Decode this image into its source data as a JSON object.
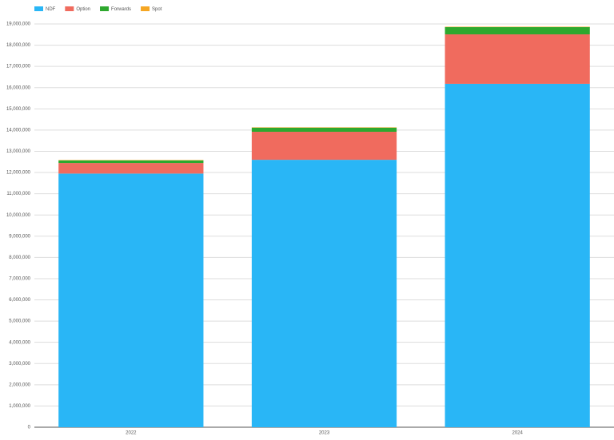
{
  "chart_data": {
    "type": "stacked_bar",
    "categories": [
      "2022",
      "2023",
      "2024"
    ],
    "series": [
      {
        "name": "NDF",
        "color": "#29b6f6",
        "values": [
          11950000,
          12600000,
          16180000
        ]
      },
      {
        "name": "Option",
        "color": "#f06b5e",
        "values": [
          500000,
          1320000,
          2330000
        ]
      },
      {
        "name": "Forwards",
        "color": "#2ea82e",
        "values": [
          120000,
          190000,
          340000
        ]
      },
      {
        "name": "Spot",
        "color": "#f5a623",
        "values": [
          20000,
          20000,
          20000
        ]
      }
    ],
    "ylim": [
      0,
      19000000
    ],
    "yticks": [
      0,
      {
        "value": 1000000,
        "label": "1,000,000"
      },
      {
        "value": 2000000,
        "label": "2,000,000"
      },
      {
        "value": 3000000,
        "label": "3,000,000"
      },
      {
        "value": 4000000,
        "label": "4,000,000"
      },
      {
        "value": 5000000,
        "label": "5,000,000"
      },
      {
        "value": 6000000,
        "label": "6,000,000"
      },
      {
        "value": 7000000,
        "label": "7,000,000"
      },
      {
        "value": 8000000,
        "label": "8,000,000"
      },
      {
        "value": 9000000,
        "label": "9,000,000"
      },
      {
        "value": 10000000,
        "label": "10,000,000"
      },
      {
        "value": 11000000,
        "label": "11,000,000"
      },
      {
        "value": 12000000,
        "label": "12,000,000"
      },
      {
        "value": 13000000,
        "label": "13,000,000"
      },
      {
        "value": 14000000,
        "label": "14,000,000"
      },
      {
        "value": 15000000,
        "label": "15,000,000"
      },
      {
        "value": 16000000,
        "label": "16,000,000"
      },
      {
        "value": 17000000,
        "label": "17,000,000"
      },
      {
        "value": 18000000,
        "label": "18,000,000"
      },
      {
        "value": 19000000,
        "label": "19,000,000"
      }
    ],
    "grid": true
  }
}
